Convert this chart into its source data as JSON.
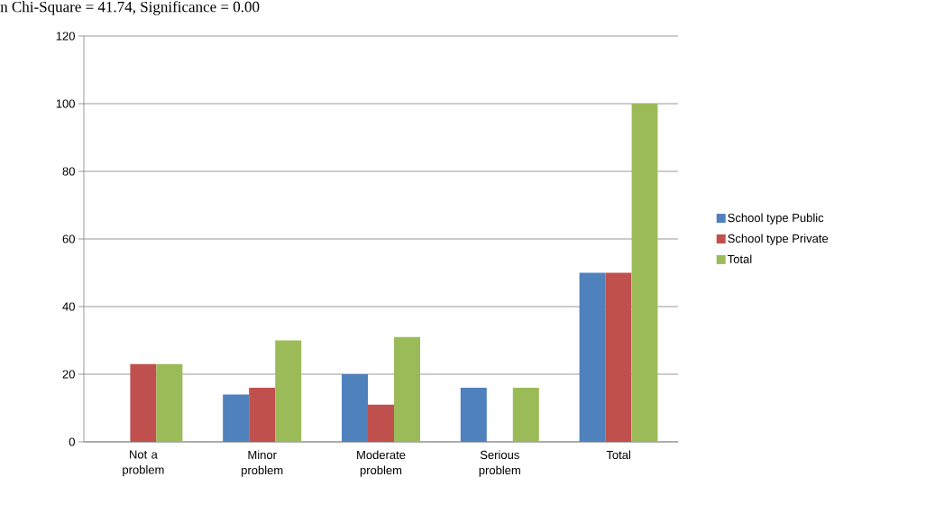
{
  "chart_data": {
    "type": "bar",
    "title": "n Chi-Square = 41.74, Significance = 0.00",
    "categories": [
      "Not a problem",
      "Minor problem",
      "Moderate problem",
      "Serious problem",
      "Total"
    ],
    "series": [
      {
        "name": "School type Public",
        "color": "#4f81bd",
        "values": [
          0,
          14,
          20,
          16,
          50
        ]
      },
      {
        "name": "School type Private",
        "color": "#c0504d",
        "values": [
          23,
          16,
          11,
          0,
          50
        ]
      },
      {
        "name": "Total",
        "color": "#9bbb59",
        "values": [
          23,
          30,
          31,
          16,
          100
        ]
      }
    ],
    "ylim": [
      0,
      120
    ],
    "yticks": [
      0,
      20,
      40,
      60,
      80,
      100,
      120
    ],
    "grid": "y",
    "legend": "right"
  }
}
